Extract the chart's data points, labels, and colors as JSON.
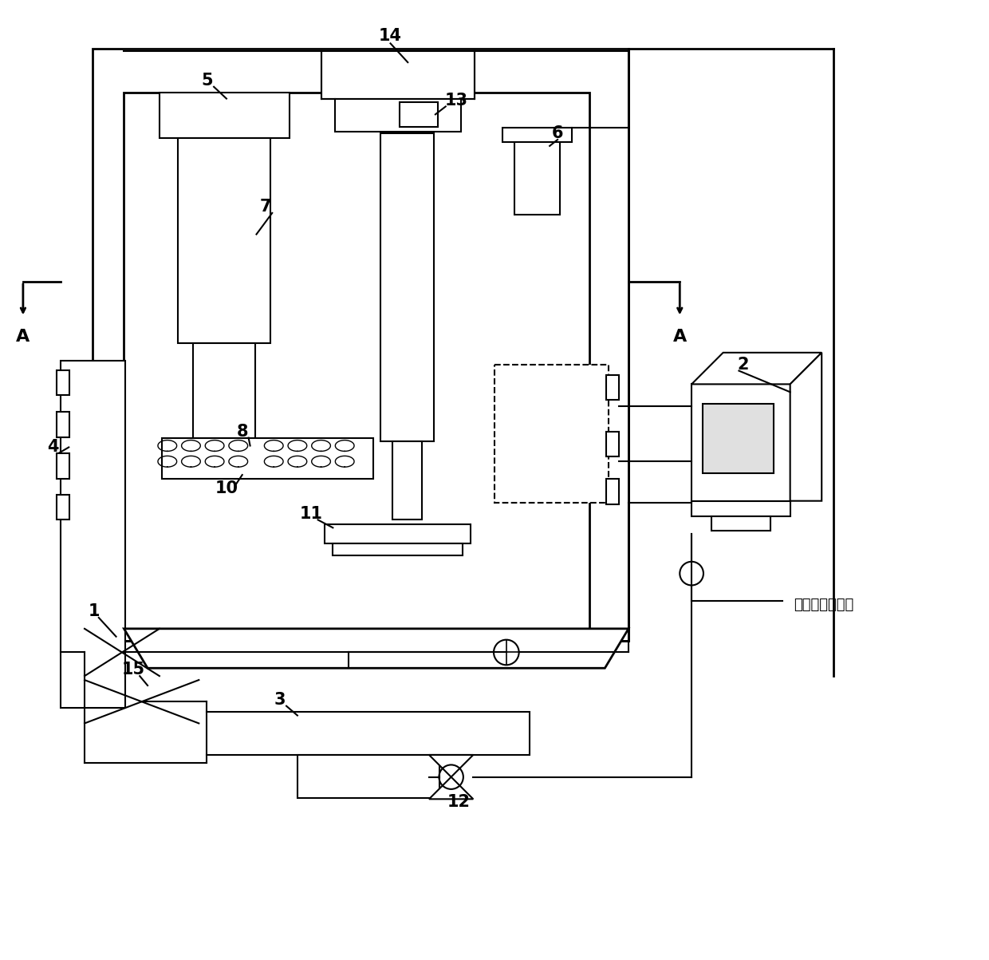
{
  "bg_color": "#ffffff",
  "line_color": "#000000",
  "fig_width": 12.4,
  "fig_height": 12.03,
  "env_text": "环境温度传感器"
}
